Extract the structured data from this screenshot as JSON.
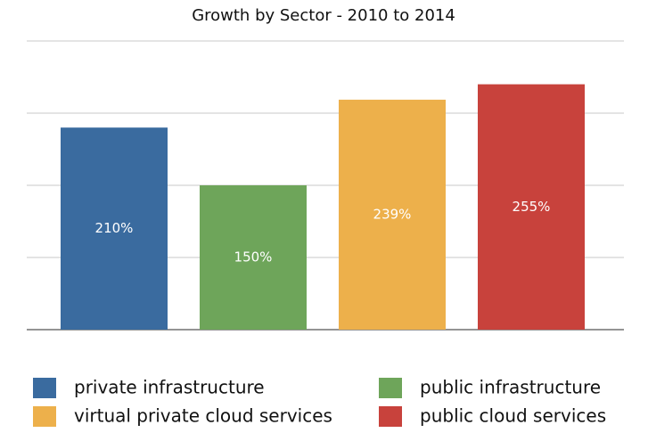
{
  "chart_data": {
    "type": "bar",
    "title": "Growth by Sector - 2010 to 2014",
    "series": [
      {
        "name": "private infrastructure",
        "color": "#3a6b9f",
        "values": [
          210
        ],
        "value_labels": [
          "210%"
        ]
      },
      {
        "name": "public infrastructure",
        "color": "#6ea55a",
        "values": [
          150
        ],
        "value_labels": [
          "150%"
        ]
      },
      {
        "name": "virtual private cloud services",
        "color": "#edb04b",
        "values": [
          239
        ],
        "value_labels": [
          "239%"
        ]
      },
      {
        "name": "public cloud services",
        "color": "#c8423c",
        "values": [
          255
        ],
        "value_labels": [
          "255%"
        ]
      }
    ],
    "ylim": [
      0,
      300
    ],
    "yticks": [
      0,
      75,
      150,
      225,
      300
    ],
    "grid": true,
    "legend": "bottom"
  }
}
